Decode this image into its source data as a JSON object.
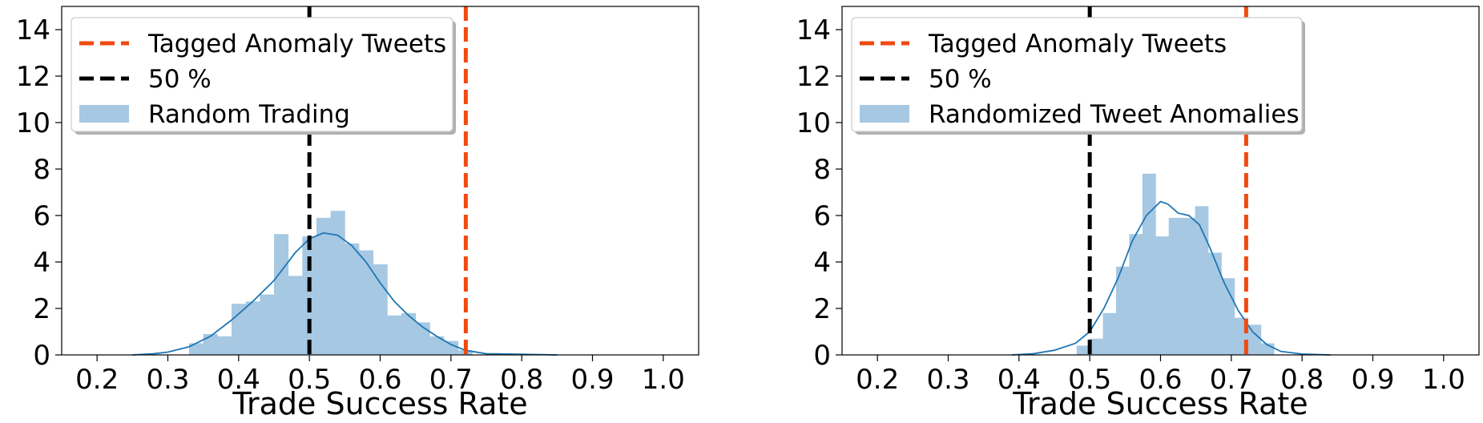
{
  "chart_data": [
    {
      "type": "histogram",
      "xlabel": "Trade Success Rate",
      "ylabel": "",
      "xlim": [
        0.15,
        1.05
      ],
      "ylim": [
        0,
        15
      ],
      "xticks": [
        "0.2",
        "0.3",
        "0.4",
        "0.5",
        "0.6",
        "0.7",
        "0.8",
        "0.9",
        "1.0"
      ],
      "yticks": [
        "0",
        "2",
        "4",
        "6",
        "8",
        "10",
        "12",
        "14"
      ],
      "grid": false,
      "legend_position": "top-left",
      "legend": [
        "Tagged Anomaly Tweets",
        "50 %",
        "Random Trading"
      ],
      "histogram": {
        "name": "Random Trading",
        "color": "#a6c8e2",
        "bin_width": 0.02,
        "bins": [
          {
            "x": 0.34,
            "y": 0.5
          },
          {
            "x": 0.36,
            "y": 0.9
          },
          {
            "x": 0.38,
            "y": 0.8
          },
          {
            "x": 0.4,
            "y": 2.2
          },
          {
            "x": 0.42,
            "y": 2.3
          },
          {
            "x": 0.44,
            "y": 2.6
          },
          {
            "x": 0.46,
            "y": 5.2
          },
          {
            "x": 0.48,
            "y": 3.4
          },
          {
            "x": 0.5,
            "y": 5.1
          },
          {
            "x": 0.52,
            "y": 5.9
          },
          {
            "x": 0.54,
            "y": 6.2
          },
          {
            "x": 0.56,
            "y": 4.8
          },
          {
            "x": 0.58,
            "y": 4.5
          },
          {
            "x": 0.6,
            "y": 3.9
          },
          {
            "x": 0.62,
            "y": 1.7
          },
          {
            "x": 0.64,
            "y": 1.8
          },
          {
            "x": 0.66,
            "y": 1.4
          },
          {
            "x": 0.68,
            "y": 0.8
          },
          {
            "x": 0.7,
            "y": 0.6
          },
          {
            "x": 0.72,
            "y": 0.2
          }
        ]
      },
      "kde": {
        "color": "#1f77b4",
        "points": [
          [
            0.25,
            0.0
          ],
          [
            0.28,
            0.05
          ],
          [
            0.3,
            0.12
          ],
          [
            0.33,
            0.35
          ],
          [
            0.36,
            0.8
          ],
          [
            0.39,
            1.5
          ],
          [
            0.42,
            2.3
          ],
          [
            0.45,
            3.2
          ],
          [
            0.48,
            4.4
          ],
          [
            0.5,
            5.0
          ],
          [
            0.52,
            5.25
          ],
          [
            0.54,
            5.15
          ],
          [
            0.56,
            4.7
          ],
          [
            0.58,
            4.0
          ],
          [
            0.6,
            3.1
          ],
          [
            0.62,
            2.3
          ],
          [
            0.64,
            1.7
          ],
          [
            0.66,
            1.2
          ],
          [
            0.68,
            0.8
          ],
          [
            0.7,
            0.45
          ],
          [
            0.72,
            0.2
          ],
          [
            0.75,
            0.05
          ],
          [
            0.8,
            0.03
          ],
          [
            0.85,
            0.0
          ]
        ]
      },
      "vlines": [
        {
          "label": "Tagged Anomaly Tweets",
          "x": 0.721,
          "color": "#f04a10"
        },
        {
          "label": "50 %",
          "x": 0.5,
          "color": "#000000"
        }
      ]
    },
    {
      "type": "histogram",
      "xlabel": "Trade Success Rate",
      "ylabel": "",
      "xlim": [
        0.15,
        1.05
      ],
      "ylim": [
        0,
        15
      ],
      "xticks": [
        "0.2",
        "0.3",
        "0.4",
        "0.5",
        "0.6",
        "0.7",
        "0.8",
        "0.9",
        "1.0"
      ],
      "yticks": [
        "0",
        "2",
        "4",
        "6",
        "8",
        "10",
        "12",
        "14"
      ],
      "grid": false,
      "legend_position": "top-left",
      "legend": [
        "Tagged Anomaly Tweets",
        "50 %",
        "Randomized Tweet Anomalies"
      ],
      "histogram": {
        "name": "Randomized Tweet Anomalies",
        "color": "#a6c8e2",
        "bin_width": 0.0186,
        "bins": [
          {
            "x": 0.4907,
            "y": 0.4
          },
          {
            "x": 0.5093,
            "y": 0.7
          },
          {
            "x": 0.5279,
            "y": 1.8
          },
          {
            "x": 0.5465,
            "y": 3.8
          },
          {
            "x": 0.5651,
            "y": 5.2
          },
          {
            "x": 0.5837,
            "y": 7.8
          },
          {
            "x": 0.6023,
            "y": 5.1
          },
          {
            "x": 0.6209,
            "y": 5.9
          },
          {
            "x": 0.6395,
            "y": 5.9
          },
          {
            "x": 0.6581,
            "y": 6.4
          },
          {
            "x": 0.6767,
            "y": 4.4
          },
          {
            "x": 0.6953,
            "y": 3.3
          },
          {
            "x": 0.7139,
            "y": 1.6
          },
          {
            "x": 0.7325,
            "y": 1.3
          },
          {
            "x": 0.7511,
            "y": 0.5
          }
        ]
      },
      "kde": {
        "color": "#1f77b4",
        "points": [
          [
            0.39,
            0.0
          ],
          [
            0.42,
            0.05
          ],
          [
            0.45,
            0.2
          ],
          [
            0.48,
            0.5
          ],
          [
            0.5,
            1.0
          ],
          [
            0.52,
            2.0
          ],
          [
            0.54,
            3.3
          ],
          [
            0.56,
            4.9
          ],
          [
            0.58,
            6.0
          ],
          [
            0.6,
            6.6
          ],
          [
            0.61,
            6.5
          ],
          [
            0.625,
            6.1
          ],
          [
            0.64,
            6.0
          ],
          [
            0.655,
            5.6
          ],
          [
            0.67,
            4.6
          ],
          [
            0.69,
            3.1
          ],
          [
            0.71,
            1.9
          ],
          [
            0.73,
            1.0
          ],
          [
            0.75,
            0.45
          ],
          [
            0.77,
            0.15
          ],
          [
            0.8,
            0.04
          ],
          [
            0.84,
            0.0
          ]
        ]
      },
      "vlines": [
        {
          "label": "Tagged Anomaly Tweets",
          "x": 0.721,
          "color": "#f04a10"
        },
        {
          "label": "50 %",
          "x": 0.5,
          "color": "#000000"
        }
      ]
    }
  ]
}
